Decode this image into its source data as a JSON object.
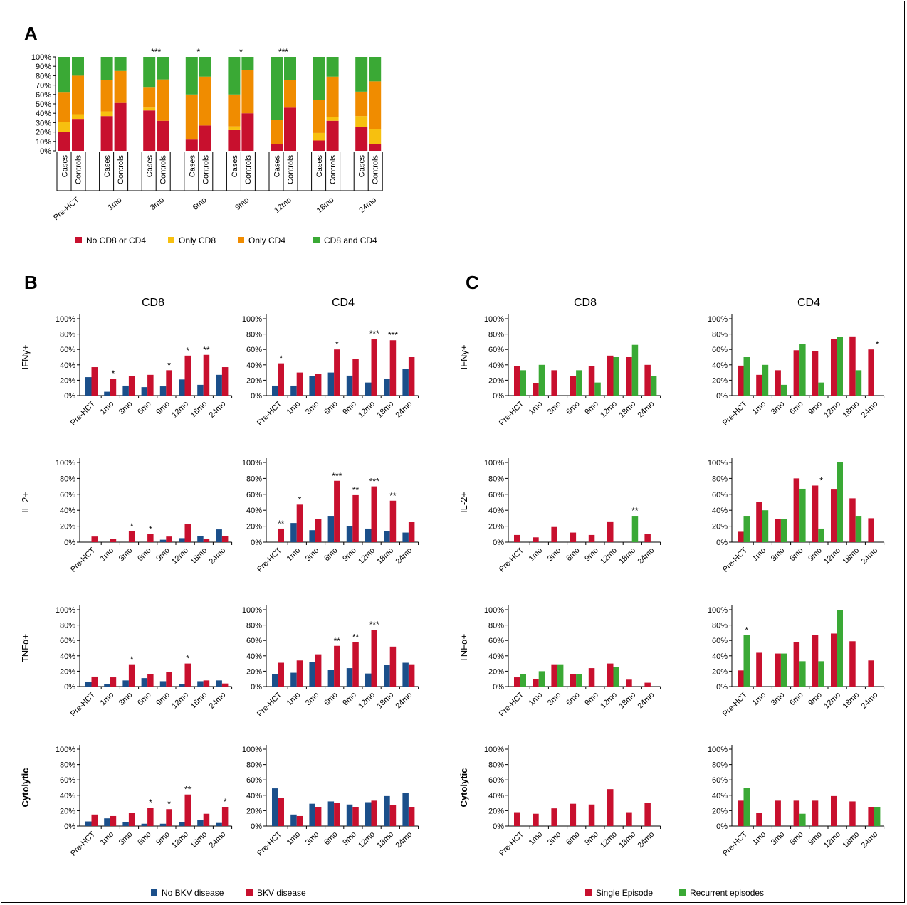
{
  "colors": {
    "none": "#c8102e",
    "only_cd8": "#f7c00f",
    "only_cd4": "#f08c00",
    "both": "#3aa935",
    "no_bkv": "#1b4f8a",
    "bkv": "#c8102e",
    "single": "#c8102e",
    "recurrent": "#3aa935"
  },
  "panels": {
    "A": {
      "letter": "A"
    },
    "B": {
      "letter": "B",
      "col1": "CD8",
      "col2": "CD4"
    },
    "C": {
      "letter": "C",
      "col1": "CD8",
      "col2": "CD4"
    }
  },
  "row_labels": [
    "IFNγ+",
    "IL-2+",
    "TNFα+",
    "Cytolytic"
  ],
  "timepoints": [
    "Pre-HCT",
    "1mo",
    "3mo",
    "6mo",
    "9mo",
    "12mo",
    "18mo",
    "24mo"
  ],
  "legend_B": [
    "No BKV disease",
    "BKV disease"
  ],
  "legend_C": [
    "Single Episode",
    "Recurrent episodes"
  ],
  "chart_data": [
    {
      "id": "A",
      "type": "bar",
      "stacked": true,
      "ytick_labels": [
        "0%",
        "10%",
        "20%",
        "30%",
        "40%",
        "50%",
        "60%",
        "70%",
        "80%",
        "90%",
        "100%"
      ],
      "ylim": [
        0,
        100
      ],
      "group_labels": [
        "Pre-HCT",
        "1mo",
        "3mo",
        "6mo",
        "9mo",
        "12mo",
        "18mo",
        "24mo"
      ],
      "bar_labels": [
        "Cases",
        "Controls"
      ],
      "legend": [
        "No CD8 or CD4",
        "Only CD8",
        "Only CD4",
        "CD8 and CD4"
      ],
      "bars": [
        {
          "group": 0,
          "bar": 0,
          "values": [
            20,
            11,
            31,
            38
          ]
        },
        {
          "group": 0,
          "bar": 1,
          "values": [
            34,
            5,
            41,
            20
          ]
        },
        {
          "group": 1,
          "bar": 0,
          "values": [
            37,
            5,
            33,
            25
          ]
        },
        {
          "group": 1,
          "bar": 1,
          "values": [
            51,
            0,
            34,
            15
          ]
        },
        {
          "group": 2,
          "bar": 0,
          "values": [
            43,
            3,
            22,
            32
          ]
        },
        {
          "group": 2,
          "bar": 1,
          "values": [
            32,
            0,
            44,
            24
          ]
        },
        {
          "group": 3,
          "bar": 0,
          "values": [
            12,
            0,
            48,
            40
          ]
        },
        {
          "group": 3,
          "bar": 1,
          "values": [
            27,
            0,
            52,
            21
          ]
        },
        {
          "group": 4,
          "bar": 0,
          "values": [
            22,
            4,
            34,
            40
          ]
        },
        {
          "group": 4,
          "bar": 1,
          "values": [
            40,
            0,
            46,
            14
          ]
        },
        {
          "group": 5,
          "bar": 0,
          "values": [
            7,
            0,
            26,
            67
          ]
        },
        {
          "group": 5,
          "bar": 1,
          "values": [
            46,
            0,
            29,
            25
          ]
        },
        {
          "group": 6,
          "bar": 0,
          "values": [
            11,
            8,
            35,
            46
          ]
        },
        {
          "group": 6,
          "bar": 1,
          "values": [
            32,
            4,
            43,
            21
          ]
        },
        {
          "group": 7,
          "bar": 0,
          "values": [
            25,
            12,
            26,
            37
          ]
        },
        {
          "group": 7,
          "bar": 1,
          "values": [
            7,
            16,
            51,
            26
          ]
        }
      ],
      "annotations": [
        {
          "group": 2,
          "text": "***"
        },
        {
          "group": 3,
          "text": "*"
        },
        {
          "group": 4,
          "text": "*"
        },
        {
          "group": 5,
          "text": "***"
        }
      ]
    },
    {
      "id": "B-IFNg-CD8",
      "type": "bar",
      "ylim": [
        0,
        100
      ],
      "ytick_labels": [
        "0%",
        "20%",
        "40%",
        "60%",
        "80%",
        "100%"
      ],
      "categories": [
        "Pre-HCT",
        "1mo",
        "3mo",
        "6mo",
        "9mo",
        "12mo",
        "18mo",
        "24mo"
      ],
      "series": [
        {
          "name": "No BKV disease",
          "values": [
            24,
            5,
            13,
            11,
            12,
            21,
            14,
            27
          ]
        },
        {
          "name": "BKV disease",
          "values": [
            37,
            22,
            25,
            27,
            33,
            52,
            53,
            37
          ]
        }
      ],
      "annotations": [
        "",
        "*",
        "",
        "",
        "*",
        "*",
        "**",
        ""
      ]
    },
    {
      "id": "B-IFNg-CD4",
      "type": "bar",
      "ylim": [
        0,
        100
      ],
      "ytick_labels": [
        "0%",
        "20%",
        "40%",
        "60%",
        "80%",
        "100%"
      ],
      "categories": [
        "Pre-HCT",
        "1mo",
        "3mo",
        "6mo",
        "9mo",
        "12mo",
        "18mo",
        "24mo"
      ],
      "series": [
        {
          "name": "No BKV disease",
          "values": [
            13,
            13,
            25,
            30,
            26,
            17,
            22,
            35
          ]
        },
        {
          "name": "BKV disease",
          "values": [
            42,
            30,
            28,
            60,
            48,
            74,
            72,
            50
          ]
        }
      ],
      "annotations": [
        "*",
        "",
        "",
        "*",
        "",
        "***",
        "***",
        ""
      ]
    },
    {
      "id": "B-IL2-CD8",
      "type": "bar",
      "ylim": [
        0,
        100
      ],
      "ytick_labels": [
        "0%",
        "20%",
        "40%",
        "60%",
        "80%",
        "100%"
      ],
      "categories": [
        "Pre-HCT",
        "1mo",
        "3mo",
        "6mo",
        "9mo",
        "12mo",
        "18mo",
        "24mo"
      ],
      "series": [
        {
          "name": "No BKV disease",
          "values": [
            0,
            0,
            0,
            0,
            3,
            5,
            8,
            16
          ]
        },
        {
          "name": "BKV disease",
          "values": [
            7,
            4,
            14,
            10,
            7,
            23,
            4,
            8
          ]
        }
      ],
      "annotations": [
        "",
        "",
        "*",
        "*",
        "",
        "",
        "",
        ""
      ]
    },
    {
      "id": "B-IL2-CD4",
      "type": "bar",
      "ylim": [
        0,
        100
      ],
      "ytick_labels": [
        "0%",
        "20%",
        "40%",
        "60%",
        "80%",
        "100%"
      ],
      "categories": [
        "Pre-HCT",
        "1mo",
        "3mo",
        "6mo",
        "9mo",
        "12mo",
        "18mo",
        "24mo"
      ],
      "series": [
        {
          "name": "No BKV disease",
          "values": [
            0,
            24,
            15,
            33,
            20,
            17,
            14,
            12
          ]
        },
        {
          "name": "BKV disease",
          "values": [
            17,
            47,
            29,
            77,
            59,
            70,
            52,
            25
          ]
        }
      ],
      "annotations": [
        "**",
        "*",
        "",
        "***",
        "**",
        "***",
        "**",
        ""
      ]
    },
    {
      "id": "B-TNFa-CD8",
      "type": "bar",
      "ylim": [
        0,
        100
      ],
      "ytick_labels": [
        "0%",
        "20%",
        "40%",
        "60%",
        "80%",
        "100%"
      ],
      "categories": [
        "Pre-HCT",
        "1mo",
        "3mo",
        "6mo",
        "9mo",
        "12mo",
        "18mo",
        "24mo"
      ],
      "series": [
        {
          "name": "No BKV disease",
          "values": [
            6,
            3,
            8,
            11,
            7,
            3,
            7,
            8
          ]
        },
        {
          "name": "BKV disease",
          "values": [
            13,
            12,
            29,
            16,
            19,
            30,
            8,
            4
          ]
        }
      ],
      "annotations": [
        "",
        "",
        "*",
        "",
        "",
        "*",
        "",
        ""
      ]
    },
    {
      "id": "B-TNFa-CD4",
      "type": "bar",
      "ylim": [
        0,
        100
      ],
      "ytick_labels": [
        "0%",
        "20%",
        "40%",
        "60%",
        "80%",
        "100%"
      ],
      "categories": [
        "Pre-HCT",
        "1mo",
        "3mo",
        "6mo",
        "9mo",
        "12mo",
        "18mo",
        "24mo"
      ],
      "series": [
        {
          "name": "No BKV disease",
          "values": [
            16,
            18,
            32,
            22,
            24,
            17,
            28,
            31
          ]
        },
        {
          "name": "BKV disease",
          "values": [
            31,
            34,
            42,
            53,
            58,
            74,
            52,
            29
          ]
        }
      ],
      "annotations": [
        "",
        "",
        "",
        "**",
        "**",
        "***",
        "",
        ""
      ]
    },
    {
      "id": "B-Cyto-CD8",
      "type": "bar",
      "ylim": [
        0,
        100
      ],
      "ytick_labels": [
        "0%",
        "20%",
        "40%",
        "60%",
        "80%",
        "100%"
      ],
      "categories": [
        "Pre-HCT",
        "1mo",
        "3mo",
        "6mo",
        "9mo",
        "12mo",
        "18mo",
        "24mo"
      ],
      "series": [
        {
          "name": "No BKV disease",
          "values": [
            6,
            10,
            5,
            3,
            3,
            5,
            8,
            4
          ]
        },
        {
          "name": "BKV disease",
          "values": [
            15,
            13,
            17,
            24,
            22,
            41,
            16,
            25
          ]
        }
      ],
      "annotations": [
        "",
        "",
        "",
        "*",
        "*",
        "**",
        "",
        "*"
      ]
    },
    {
      "id": "B-Cyto-CD4",
      "type": "bar",
      "ylim": [
        0,
        100
      ],
      "ytick_labels": [
        "0%",
        "20%",
        "40%",
        "60%",
        "80%",
        "100%"
      ],
      "categories": [
        "Pre-HCT",
        "1mo",
        "3mo",
        "6mo",
        "9mo",
        "12mo",
        "18mo",
        "24mo"
      ],
      "series": [
        {
          "name": "No BKV disease",
          "values": [
            49,
            15,
            29,
            32,
            28,
            31,
            39,
            43
          ]
        },
        {
          "name": "BKV disease",
          "values": [
            37,
            13,
            25,
            30,
            25,
            33,
            27,
            25
          ]
        }
      ],
      "annotations": [
        "",
        "",
        "",
        "",
        "",
        "",
        "",
        ""
      ]
    },
    {
      "id": "C-IFNg-CD8",
      "type": "bar",
      "ylim": [
        0,
        100
      ],
      "ytick_labels": [
        "0%",
        "20%",
        "40%",
        "60%",
        "80%",
        "100%"
      ],
      "categories": [
        "Pre-HCT",
        "1mo",
        "3mo",
        "6mo",
        "9mo",
        "12mo",
        "18mo",
        "24mo"
      ],
      "series": [
        {
          "name": "Single Episode",
          "values": [
            38,
            16,
            33,
            25,
            38,
            52,
            50,
            40
          ]
        },
        {
          "name": "Recurrent episodes",
          "values": [
            33,
            40,
            0,
            33,
            17,
            50,
            66,
            25
          ]
        }
      ],
      "annotations": [
        "",
        "",
        "",
        "",
        "",
        "",
        "",
        ""
      ]
    },
    {
      "id": "C-IFNg-CD4",
      "type": "bar",
      "ylim": [
        0,
        100
      ],
      "ytick_labels": [
        "0%",
        "20%",
        "40%",
        "60%",
        "80%",
        "100%"
      ],
      "categories": [
        "Pre-HCT",
        "1mo",
        "3mo",
        "6mo",
        "9mo",
        "12mo",
        "18mo",
        "24mo"
      ],
      "series": [
        {
          "name": "Single Episode",
          "values": [
            39,
            27,
            33,
            59,
            58,
            74,
            77,
            60
          ]
        },
        {
          "name": "Recurrent episodes",
          "values": [
            50,
            40,
            14,
            67,
            17,
            76,
            33,
            0
          ]
        }
      ],
      "annotations": [
        "",
        "",
        "",
        "",
        "",
        "",
        "",
        "*"
      ]
    },
    {
      "id": "C-IL2-CD8",
      "type": "bar",
      "ylim": [
        0,
        100
      ],
      "ytick_labels": [
        "0%",
        "20%",
        "40%",
        "60%",
        "80%",
        "100%"
      ],
      "categories": [
        "Pre-HCT",
        "1mo",
        "3mo",
        "6mo",
        "9mo",
        "12mo",
        "18mo",
        "24mo"
      ],
      "series": [
        {
          "name": "Single Episode",
          "values": [
            9,
            6,
            19,
            12,
            9,
            26,
            0,
            10
          ]
        },
        {
          "name": "Recurrent episodes",
          "values": [
            0,
            0,
            0,
            0,
            0,
            0,
            33,
            0
          ]
        }
      ],
      "annotations": [
        "",
        "",
        "",
        "",
        "",
        "",
        "**",
        ""
      ]
    },
    {
      "id": "C-IL2-CD4",
      "type": "bar",
      "ylim": [
        0,
        100
      ],
      "ytick_labels": [
        "0%",
        "20%",
        "40%",
        "60%",
        "80%",
        "100%"
      ],
      "categories": [
        "Pre-HCT",
        "1mo",
        "3mo",
        "6mo",
        "9mo",
        "12mo",
        "18mo",
        "24mo"
      ],
      "series": [
        {
          "name": "Single Episode",
          "values": [
            13,
            50,
            29,
            80,
            71,
            66,
            55,
            30
          ]
        },
        {
          "name": "Recurrent episodes",
          "values": [
            33,
            40,
            29,
            67,
            17,
            100,
            33,
            0
          ]
        }
      ],
      "annotations": [
        "",
        "",
        "",
        "",
        "*",
        "",
        "",
        ""
      ]
    },
    {
      "id": "C-TNFa-CD8",
      "type": "bar",
      "ylim": [
        0,
        100
      ],
      "ytick_labels": [
        "0%",
        "20%",
        "40%",
        "60%",
        "80%",
        "100%"
      ],
      "categories": [
        "Pre-HCT",
        "1mo",
        "3mo",
        "6mo",
        "9mo",
        "12mo",
        "18mo",
        "24mo"
      ],
      "series": [
        {
          "name": "Single Episode",
          "values": [
            12,
            10,
            29,
            16,
            24,
            30,
            9,
            5
          ]
        },
        {
          "name": "Recurrent episodes",
          "values": [
            16,
            20,
            29,
            16,
            0,
            25,
            0,
            0
          ]
        }
      ],
      "annotations": [
        "",
        "",
        "",
        "",
        "",
        "",
        "",
        ""
      ]
    },
    {
      "id": "C-TNFa-CD4",
      "type": "bar",
      "ylim": [
        0,
        100
      ],
      "ytick_labels": [
        "0%",
        "20%",
        "40%",
        "60%",
        "80%",
        "100%"
      ],
      "categories": [
        "Pre-HCT",
        "1mo",
        "3mo",
        "6mo",
        "9mo",
        "12mo",
        "18mo",
        "24mo"
      ],
      "series": [
        {
          "name": "Single Episode",
          "values": [
            21,
            44,
            43,
            58,
            67,
            69,
            59,
            34
          ]
        },
        {
          "name": "Recurrent episodes",
          "values": [
            67,
            0,
            43,
            33,
            33,
            100,
            0,
            0
          ]
        }
      ],
      "annotations": [
        "*",
        "",
        "",
        "",
        "",
        "",
        "",
        ""
      ]
    },
    {
      "id": "C-Cyto-CD8",
      "type": "bar",
      "ylim": [
        0,
        100
      ],
      "ytick_labels": [
        "0%",
        "20%",
        "40%",
        "60%",
        "80%",
        "100%"
      ],
      "categories": [
        "Pre-HCT",
        "1mo",
        "3mo",
        "6mo",
        "9mo",
        "12mo",
        "18mo",
        "24mo"
      ],
      "series": [
        {
          "name": "Single Episode",
          "values": [
            18,
            16,
            23,
            29,
            28,
            48,
            18,
            30
          ]
        },
        {
          "name": "Recurrent episodes",
          "values": [
            0,
            0,
            0,
            0,
            0,
            0,
            0,
            0
          ]
        }
      ],
      "annotations": [
        "",
        "",
        "",
        "",
        "",
        "",
        "",
        ""
      ]
    },
    {
      "id": "C-Cyto-CD4",
      "type": "bar",
      "ylim": [
        0,
        100
      ],
      "ytick_labels": [
        "0%",
        "20%",
        "40%",
        "60%",
        "80%",
        "100%"
      ],
      "categories": [
        "Pre-HCT",
        "1mo",
        "3mo",
        "6mo",
        "9mo",
        "12mo",
        "18mo",
        "24mo"
      ],
      "series": [
        {
          "name": "Single Episode",
          "values": [
            33,
            17,
            33,
            33,
            33,
            39,
            32,
            25
          ]
        },
        {
          "name": "Recurrent episodes",
          "values": [
            50,
            0,
            0,
            16,
            0,
            0,
            0,
            25
          ]
        }
      ],
      "annotations": [
        "",
        "",
        "",
        "",
        "",
        "",
        "",
        ""
      ]
    }
  ]
}
